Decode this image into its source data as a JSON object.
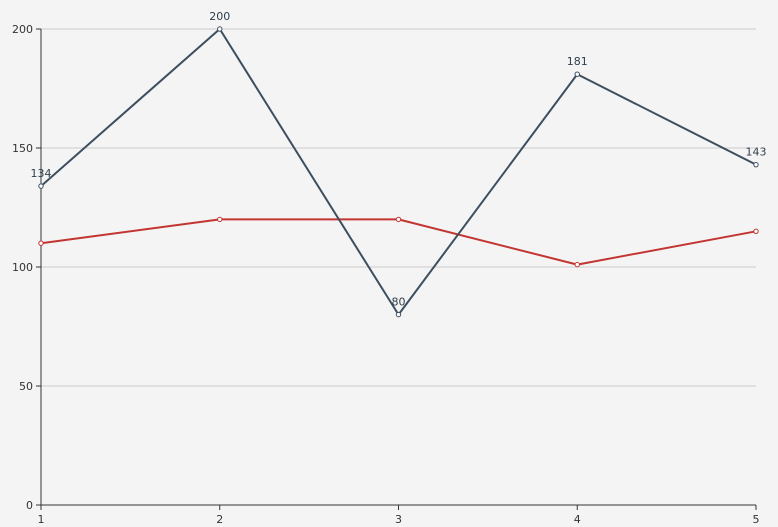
{
  "chart_data": {
    "type": "line",
    "x": [
      1,
      2,
      3,
      4,
      5
    ],
    "xticks": [
      "1",
      "2",
      "3",
      "4",
      "5"
    ],
    "ylim": [
      0,
      200
    ],
    "yticks": [
      "0",
      "50",
      "100",
      "150",
      "200"
    ],
    "ytick_values": [
      0,
      50,
      100,
      150,
      200
    ],
    "grid": true,
    "legend": "none",
    "series": [
      {
        "values": [
          134,
          200,
          80,
          181,
          143
        ],
        "color": "#3d4f5f",
        "labels": [
          "134",
          "200",
          "80",
          "181",
          "143"
        ]
      },
      {
        "values": [
          110,
          120,
          120,
          101,
          115
        ],
        "color": "#c23531"
      }
    ]
  }
}
